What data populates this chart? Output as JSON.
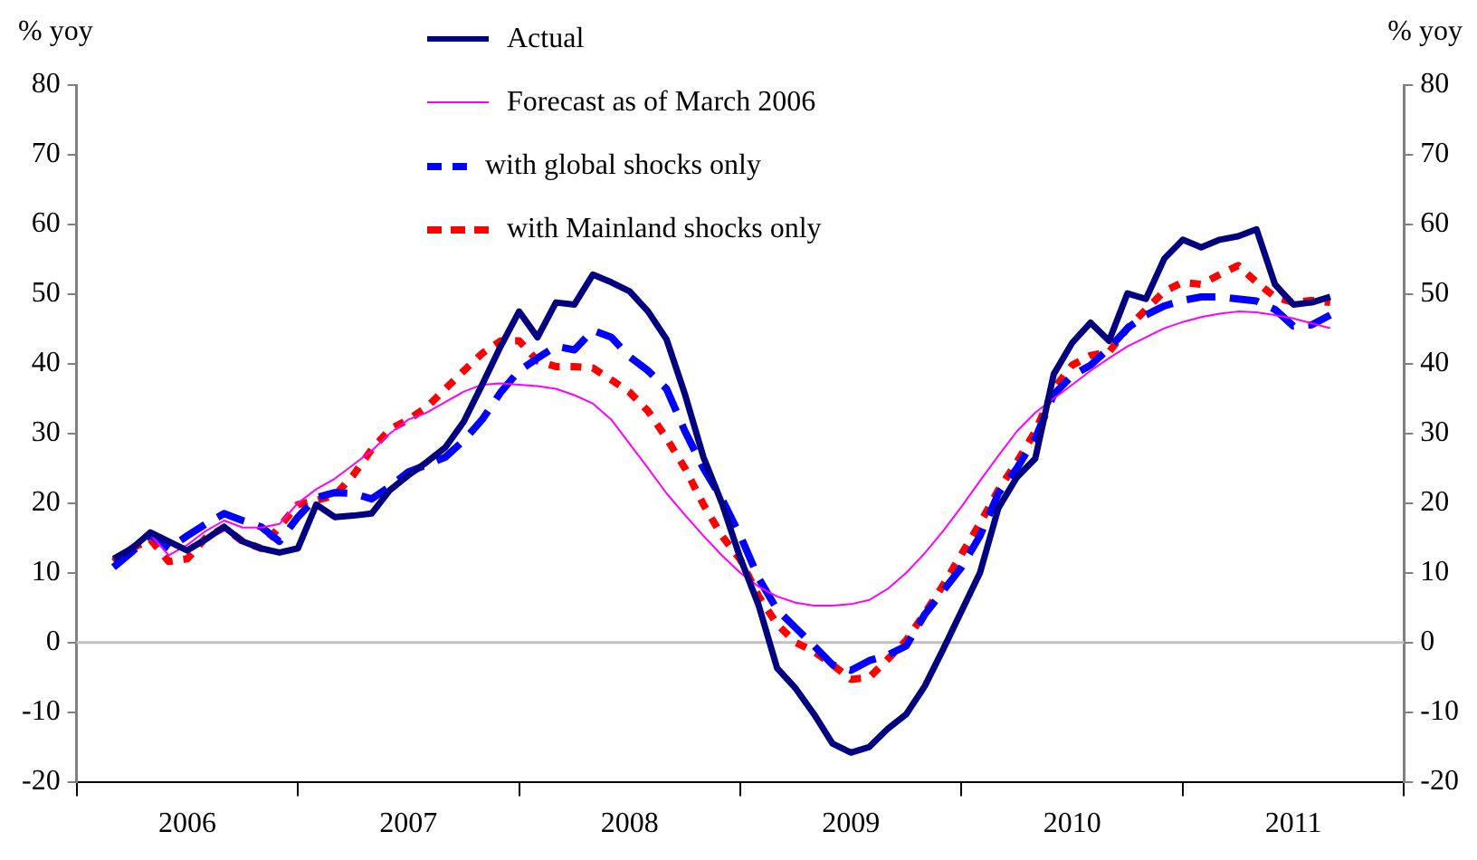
{
  "chart_data": {
    "type": "line",
    "ylabel": "% yoy",
    "y2label": "% yoy",
    "x": [
      "2006-03",
      "2006-04",
      "2006-05",
      "2006-06",
      "2006-07",
      "2006-08",
      "2006-09",
      "2006-10",
      "2006-11",
      "2006-12",
      "2007-01",
      "2007-02",
      "2007-03",
      "2007-04",
      "2007-05",
      "2007-06",
      "2007-07",
      "2007-08",
      "2007-09",
      "2007-10",
      "2007-11",
      "2007-12",
      "2008-01",
      "2008-02",
      "2008-03",
      "2008-04",
      "2008-05",
      "2008-06",
      "2008-07",
      "2008-08",
      "2008-09",
      "2008-10",
      "2008-11",
      "2008-12",
      "2009-01",
      "2009-02",
      "2009-03",
      "2009-04",
      "2009-05",
      "2009-06",
      "2009-07",
      "2009-08",
      "2009-09",
      "2009-10",
      "2009-11",
      "2009-12",
      "2010-01",
      "2010-02",
      "2010-03",
      "2010-04",
      "2010-05",
      "2010-06",
      "2010-07",
      "2010-08",
      "2010-09",
      "2010-10",
      "2010-11",
      "2010-12",
      "2011-01",
      "2011-02",
      "2011-03",
      "2011-04",
      "2011-05",
      "2011-06",
      "2011-07",
      "2011-08",
      "2011-09"
    ],
    "series": [
      {
        "name": "Actual",
        "color": "#000080",
        "line_style": "solid",
        "values": [
          12,
          13.5,
          15.8,
          14.5,
          13.2,
          14.8,
          16.6,
          14.5,
          13.5,
          12.9,
          13.5,
          19.8,
          18,
          18.2,
          18.5,
          21.9,
          24,
          25.9,
          28,
          31.7,
          37,
          42.5,
          47.5,
          43.8,
          48.8,
          48.5,
          52.8,
          51.7,
          50.4,
          47.5,
          43.5,
          35.6,
          26.6,
          20,
          12.1,
          5.3,
          -3.7,
          -6.6,
          -10.3,
          -14.5,
          -15.8,
          -15,
          -12.4,
          -10.3,
          -6.3,
          -1,
          4.5,
          10,
          19.3,
          23.7,
          26.4,
          38.5,
          43,
          45.9,
          43.3,
          50.1,
          49.3,
          55.1,
          57.8,
          56.7,
          57.8,
          58.3,
          59.3,
          51.4,
          48.5,
          48.8,
          49.6
        ]
      },
      {
        "name": "Forecast as of March 2006",
        "color": "#ff00ff",
        "line_style": "solid",
        "values": [
          12,
          14,
          15.5,
          12.5,
          14,
          16,
          17.5,
          16.5,
          16.5,
          17,
          20,
          22,
          23.5,
          25.5,
          27.5,
          30,
          32,
          33,
          34.5,
          36,
          37,
          37.2,
          37,
          36.8,
          36.4,
          35.5,
          34.3,
          32,
          28.5,
          25,
          21.4,
          18.3,
          15.3,
          12.5,
          10,
          8,
          6.6,
          5.7,
          5.3,
          5.3,
          5.5,
          6.1,
          7.7,
          10,
          12.8,
          16,
          19.5,
          23.2,
          26.8,
          30.3,
          33,
          35,
          37,
          39,
          40.8,
          42.5,
          43.8,
          45.1,
          46,
          46.7,
          47.2,
          47.5,
          47.4,
          47,
          46.5,
          45.8,
          45.1
        ]
      },
      {
        "name": "with global shocks only",
        "color": "#0000ff",
        "line_style": "dashed",
        "values": [
          10.8,
          13,
          15.5,
          13.5,
          15.3,
          17,
          18.5,
          17.5,
          16.6,
          14.5,
          18,
          20.8,
          21.5,
          21.4,
          20.6,
          22.4,
          24.5,
          25.5,
          26.6,
          29,
          32,
          35.9,
          39,
          40.8,
          42.5,
          42,
          44.8,
          43.8,
          41,
          39,
          36.4,
          30.3,
          25,
          20.6,
          15.3,
          9.2,
          4.7,
          2.1,
          -0.5,
          -3.2,
          -4,
          -2.6,
          -1.8,
          -0.5,
          4,
          7.4,
          10.8,
          15.3,
          21.4,
          25,
          29.3,
          35.6,
          38.3,
          39.8,
          42.2,
          45.1,
          47,
          48.3,
          49.1,
          49.6,
          49.6,
          49.3,
          49,
          47.8,
          45.4,
          45.6,
          47
        ]
      },
      {
        "name": "with Mainland shocks only",
        "color": "#ff0000",
        "line_style": "dotted",
        "values": [
          11.6,
          13.5,
          14.8,
          11.6,
          12,
          15,
          16.5,
          14.5,
          13.5,
          16.6,
          19.8,
          20.4,
          21.1,
          24,
          27.7,
          30.6,
          32,
          33.8,
          36.4,
          39,
          41.5,
          43.3,
          43.3,
          40.4,
          39.6,
          39.6,
          39.4,
          37.7,
          35.9,
          33.2,
          29.3,
          25,
          19.8,
          15.3,
          11.9,
          6.6,
          2.6,
          0,
          -1.3,
          -3.2,
          -5.3,
          -5,
          -2.4,
          0.3,
          4.2,
          8.2,
          12.7,
          17.1,
          21.9,
          25.9,
          30.3,
          36.4,
          39.8,
          41.2,
          41.7,
          45.1,
          47.8,
          50.4,
          51.7,
          51.4,
          52.8,
          54.1,
          51.7,
          49.6,
          48.8,
          49.1,
          48.8
        ]
      }
    ],
    "xlim": [
      "2006-01",
      "2012-01"
    ],
    "xticks": [
      {
        "value": "2006-01",
        "label": null
      },
      {
        "value": "2006-07",
        "label": "2006"
      },
      {
        "value": "2007-01",
        "label": null
      },
      {
        "value": "2007-07",
        "label": "2007"
      },
      {
        "value": "2008-01",
        "label": null
      },
      {
        "value": "2008-07",
        "label": "2008"
      },
      {
        "value": "2009-01",
        "label": null
      },
      {
        "value": "2009-07",
        "label": "2009"
      },
      {
        "value": "2010-01",
        "label": null
      },
      {
        "value": "2010-07",
        "label": "2010"
      },
      {
        "value": "2011-01",
        "label": null
      },
      {
        "value": "2011-07",
        "label": "2011"
      },
      {
        "value": "2012-01",
        "label": null
      }
    ],
    "ylim": [
      -20,
      80
    ],
    "yticks": [
      -20,
      -10,
      0,
      10,
      20,
      30,
      40,
      50,
      60,
      70,
      80
    ],
    "y2lim": [
      -20,
      80
    ],
    "y2ticks": [
      -20,
      -10,
      0,
      10,
      20,
      30,
      40,
      50,
      60,
      70,
      80
    ],
    "ref_lines": [
      {
        "axis": "y",
        "value": 0,
        "color": "#c0c0c0"
      }
    ],
    "marker": "none",
    "grid": false,
    "legend": "top"
  }
}
